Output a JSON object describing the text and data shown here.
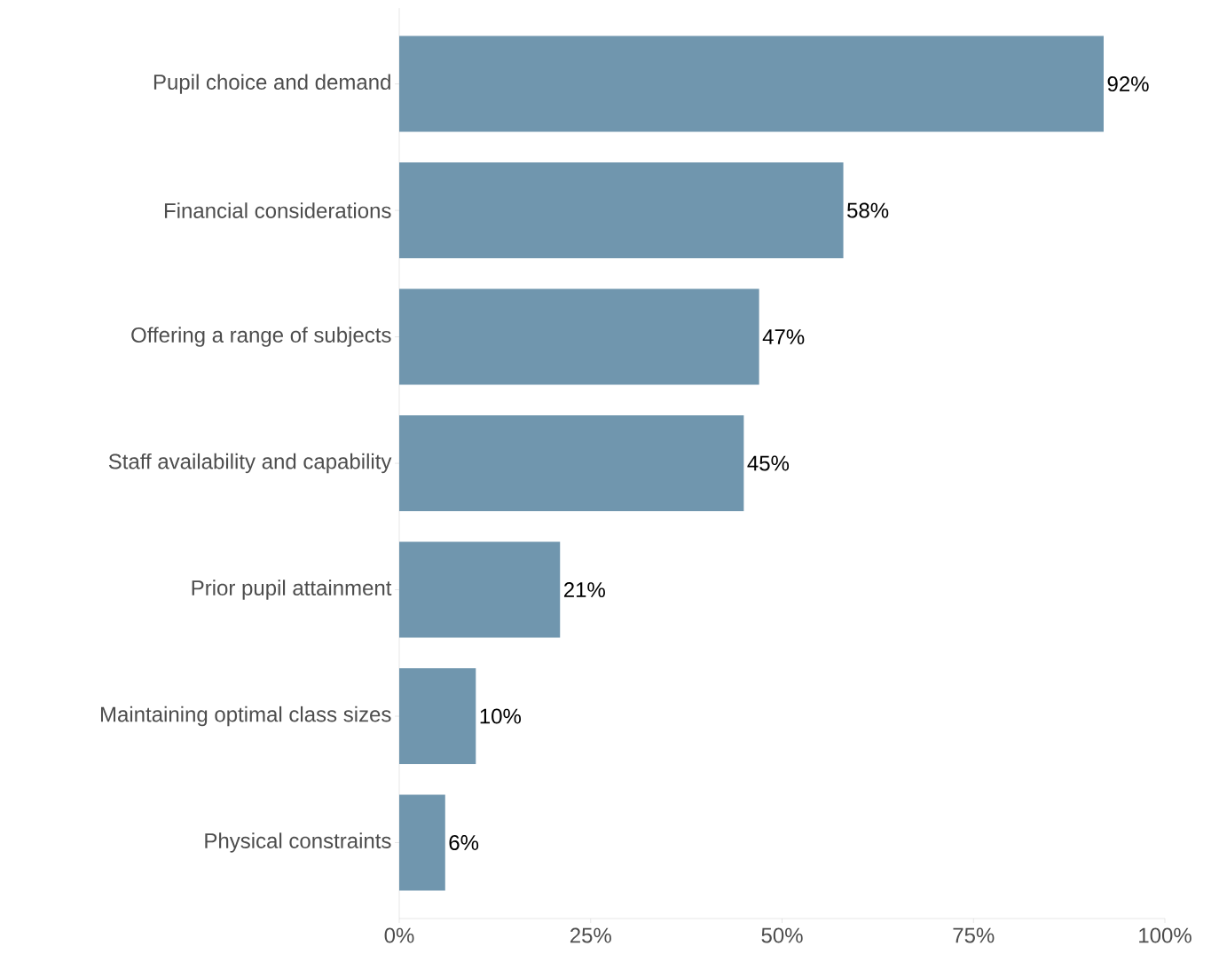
{
  "chart_data": {
    "type": "bar",
    "orientation": "horizontal",
    "categories": [
      "Pupil choice and demand",
      "Financial considerations",
      "Offering a range of subjects",
      "Staff availability and capability",
      "Prior pupil attainment",
      "Maintaining optimal class sizes",
      "Physical constraints"
    ],
    "values": [
      92,
      58,
      47,
      45,
      21,
      10,
      6
    ],
    "value_labels": [
      "92%",
      "58%",
      "47%",
      "45%",
      "21%",
      "10%",
      "6%"
    ],
    "color": "#7096ae",
    "xlim": [
      0,
      100
    ],
    "xticks": [
      {
        "value": 0,
        "label": "0%"
      },
      {
        "value": 25,
        "label": "25%"
      },
      {
        "value": 50,
        "label": "50%"
      },
      {
        "value": 75,
        "label": "75%"
      },
      {
        "value": 100,
        "label": "100%"
      }
    ]
  }
}
